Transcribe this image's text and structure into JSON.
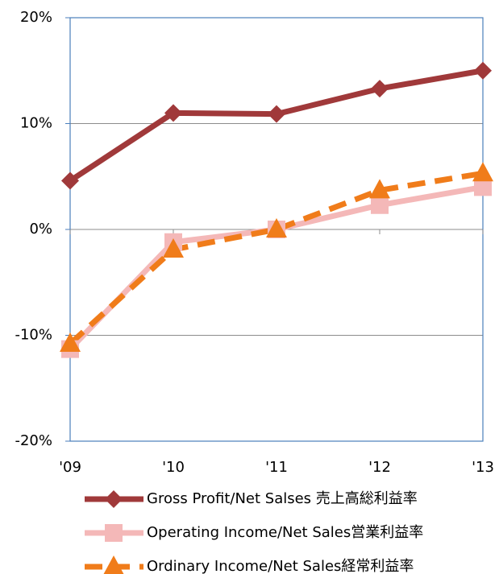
{
  "chart_data": {
    "type": "line",
    "categories": [
      "'09",
      "'10",
      "'11",
      "'12",
      "'13"
    ],
    "series": [
      {
        "name": "Gross Profit/Net Salses 売上高総利益率",
        "color": "#a0393a",
        "marker": "diamond",
        "dashed": false,
        "values": [
          4.6,
          11.0,
          10.9,
          13.3,
          15.0
        ]
      },
      {
        "name": "Operating Income/Net Sales営業利益率",
        "color": "#f4b8b8",
        "marker": "square",
        "dashed": false,
        "values": [
          -11.3,
          -1.2,
          0.0,
          2.3,
          4.0
        ]
      },
      {
        "name": "Ordinary Income/Net Sales経常利益率",
        "color": "#f07c1a",
        "marker": "triangle",
        "dashed": true,
        "values": [
          -10.8,
          -1.9,
          0.0,
          3.7,
          5.3
        ]
      }
    ],
    "ylim": [
      -20,
      20
    ],
    "yticks": [
      {
        "value": -20,
        "label": "-20%"
      },
      {
        "value": -10,
        "label": "-10%"
      },
      {
        "value": 0,
        "label": "0%"
      },
      {
        "value": 10,
        "label": "10%"
      },
      {
        "value": 20,
        "label": "20%"
      }
    ],
    "grid": true,
    "legend": "bottom"
  }
}
